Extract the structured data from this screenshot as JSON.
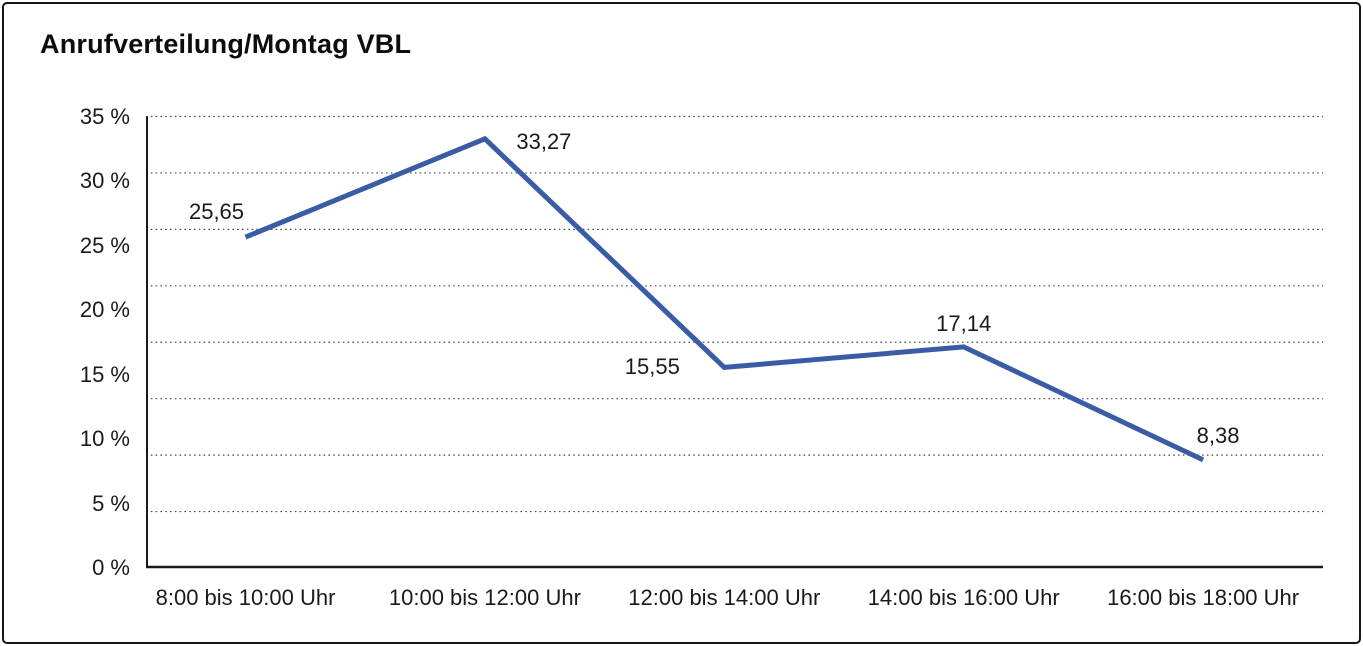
{
  "chart_data": {
    "type": "line",
    "title": "Anrufverteilung/Montag VBL",
    "categories": [
      "8:00 bis 10:00 Uhr",
      "10:00 bis 12:00 Uhr",
      "12:00 bis 14:00 Uhr",
      "14:00 bis 16:00 Uhr",
      "16:00 bis 18:00 Uhr"
    ],
    "values": [
      25.65,
      33.27,
      15.55,
      17.14,
      8.38
    ],
    "value_labels": [
      "25,65",
      "33,27",
      "15,55",
      "17,14",
      "8,38"
    ],
    "xlabel": "",
    "ylabel": "",
    "ylim": [
      0,
      35
    ],
    "y_tick_values": [
      0,
      5,
      10,
      15,
      20,
      25,
      30,
      35
    ],
    "y_tick_labels": [
      "0 %",
      "5 %",
      "10 %",
      "15 %",
      "20 %",
      "25 %",
      "30 %",
      "35 %"
    ],
    "grid": "horizontal-dotted",
    "grid_divisions": 8,
    "legend_position": "none",
    "colors": {
      "line": "#3A5CA6",
      "axis": "#1a1a1a",
      "gridline": "#4a4a4a",
      "text": "#1a1a1a",
      "background": "#ffffff",
      "border": "#161616"
    }
  }
}
